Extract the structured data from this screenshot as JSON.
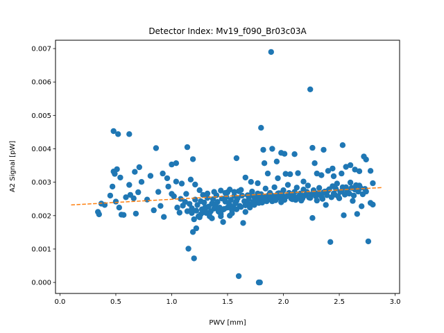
{
  "chart_data": {
    "type": "scatter",
    "title": "Detector Index: Mv19_f090_Br03c03A",
    "xlabel": "PWV [mm]",
    "ylabel": "A2 Signal [pW]",
    "xlim": [
      -0.04,
      3.04
    ],
    "ylim": [
      -0.00033,
      0.00725
    ],
    "xticks": [
      0.0,
      0.5,
      1.0,
      1.5,
      2.0,
      2.5,
      3.0
    ],
    "xtick_labels": [
      "0.0",
      "0.5",
      "1.0",
      "1.5",
      "2.0",
      "2.5",
      "3.0"
    ],
    "yticks": [
      0.0,
      0.001,
      0.002,
      0.003,
      0.004,
      0.005,
      0.006,
      0.007
    ],
    "ytick_labels": [
      "0.000",
      "0.001",
      "0.002",
      "0.003",
      "0.004",
      "0.005",
      "0.006",
      "0.007"
    ],
    "scatter_color": "#1f77b4",
    "fit_color": "#ff7f0e",
    "fit_line": {
      "x": [
        0.1,
        2.88
      ],
      "y": [
        0.00232,
        0.00284
      ]
    },
    "points": [
      [
        1.89,
        0.0069
      ],
      [
        2.24,
        0.00578
      ],
      [
        1.8,
        0.00463
      ],
      [
        0.48,
        0.00453
      ],
      [
        0.52,
        0.00444
      ],
      [
        0.62,
        0.00444
      ],
      [
        1.14,
        0.00405
      ],
      [
        0.86,
        0.00402
      ],
      [
        1.82,
        0.00397
      ],
      [
        1.9,
        0.004
      ],
      [
        1.98,
        0.00388
      ],
      [
        2.01,
        0.00385
      ],
      [
        2.1,
        0.00384
      ],
      [
        2.26,
        0.00403
      ],
      [
        2.36,
        0.00397
      ],
      [
        2.53,
        0.00411
      ],
      [
        2.72,
        0.00377
      ],
      [
        2.74,
        0.00368
      ],
      [
        1.19,
        0.00369
      ],
      [
        1.58,
        0.00372
      ],
      [
        0.71,
        0.00345
      ],
      [
        1.0,
        0.00353
      ],
      [
        1.04,
        0.00357
      ],
      [
        1.83,
        0.00357
      ],
      [
        1.94,
        0.00362
      ],
      [
        2.28,
        0.00357
      ],
      [
        2.44,
        0.00341
      ],
      [
        0.48,
        0.00332
      ],
      [
        0.51,
        0.00339
      ],
      [
        0.54,
        0.00314
      ],
      [
        0.49,
        0.00325
      ],
      [
        0.47,
        0.00287
      ],
      [
        0.62,
        0.00292
      ],
      [
        0.67,
        0.00331
      ],
      [
        0.73,
        0.00301
      ],
      [
        0.81,
        0.00319
      ],
      [
        0.92,
        0.00326
      ],
      [
        0.96,
        0.00312
      ],
      [
        1.04,
        0.00302
      ],
      [
        1.09,
        0.00296
      ],
      [
        1.17,
        0.00308
      ],
      [
        1.21,
        0.00293
      ],
      [
        1.66,
        0.00314
      ],
      [
        1.71,
        0.00301
      ],
      [
        1.77,
        0.00297
      ],
      [
        1.86,
        0.00326
      ],
      [
        1.95,
        0.00312
      ],
      [
        2.02,
        0.00325
      ],
      [
        2.06,
        0.00324
      ],
      [
        2.13,
        0.00327
      ],
      [
        2.18,
        0.00302
      ],
      [
        2.3,
        0.00326
      ],
      [
        2.34,
        0.00321
      ],
      [
        2.4,
        0.00334
      ],
      [
        2.45,
        0.00318
      ],
      [
        2.52,
        0.00326
      ],
      [
        2.56,
        0.00346
      ],
      [
        2.6,
        0.00351
      ],
      [
        2.64,
        0.00338
      ],
      [
        2.68,
        0.00333
      ],
      [
        2.78,
        0.00334
      ],
      [
        2.8,
        0.00297
      ],
      [
        0.37,
        0.00236
      ],
      [
        0.34,
        0.00211
      ],
      [
        0.35,
        0.00204
      ],
      [
        0.4,
        0.00232
      ],
      [
        0.45,
        0.0026
      ],
      [
        0.5,
        0.00242
      ],
      [
        0.53,
        0.00224
      ],
      [
        0.55,
        0.00203
      ],
      [
        0.57,
        0.00202
      ],
      [
        0.59,
        0.00255
      ],
      [
        0.63,
        0.00262
      ],
      [
        0.66,
        0.00252
      ],
      [
        0.7,
        0.0027
      ],
      [
        0.68,
        0.00206
      ],
      [
        0.78,
        0.00248
      ],
      [
        0.84,
        0.00216
      ],
      [
        0.88,
        0.00271
      ],
      [
        0.9,
        0.00229
      ],
      [
        0.93,
        0.00196
      ],
      [
        0.97,
        0.00287
      ],
      [
        1.0,
        0.00265
      ],
      [
        1.05,
        0.00224
      ],
      [
        1.07,
        0.00209
      ],
      [
        1.1,
        0.0023
      ],
      [
        1.13,
        0.00265
      ],
      [
        1.15,
        0.00101
      ],
      [
        1.2,
        0.00072
      ],
      [
        1.19,
        0.00151
      ],
      [
        1.22,
        0.00162
      ],
      [
        1.24,
        0.00198
      ],
      [
        1.25,
        0.00276
      ],
      [
        1.28,
        0.0021
      ],
      [
        1.3,
        0.00225
      ],
      [
        1.32,
        0.00253
      ],
      [
        1.34,
        0.00198
      ],
      [
        1.36,
        0.00236
      ],
      [
        1.38,
        0.00271
      ],
      [
        1.4,
        0.00226
      ],
      [
        1.42,
        0.00215
      ],
      [
        1.44,
        0.00205
      ],
      [
        1.46,
        0.00181
      ],
      [
        1.48,
        0.00242
      ],
      [
        1.5,
        0.0027
      ],
      [
        1.52,
        0.00232
      ],
      [
        1.54,
        0.00217
      ],
      [
        1.56,
        0.00259
      ],
      [
        1.58,
        0.00244
      ],
      [
        1.6,
        0.00019
      ],
      [
        1.62,
        0.00277
      ],
      [
        1.64,
        0.00178
      ],
      [
        1.66,
        0.00211
      ],
      [
        1.68,
        0.00261
      ],
      [
        1.7,
        0.00233
      ],
      [
        1.72,
        0.00272
      ],
      [
        1.74,
        0.00255
      ],
      [
        1.76,
        0.00246
      ],
      [
        1.78,
        0.0
      ],
      [
        1.78,
        0.0
      ],
      [
        1.79,
        0.0
      ],
      [
        1.8,
        0.00264
      ],
      [
        1.82,
        0.00247
      ],
      [
        1.84,
        0.00281
      ],
      [
        1.86,
        0.00258
      ],
      [
        1.88,
        0.00268
      ],
      [
        1.9,
        0.00243
      ],
      [
        1.92,
        0.00285
      ],
      [
        1.94,
        0.00254
      ],
      [
        1.96,
        0.00267
      ],
      [
        1.98,
        0.0024
      ],
      [
        2.0,
        0.00276
      ],
      [
        2.02,
        0.00256
      ],
      [
        2.04,
        0.00292
      ],
      [
        2.06,
        0.00262
      ],
      [
        2.08,
        0.00249
      ],
      [
        2.1,
        0.00271
      ],
      [
        2.12,
        0.00284
      ],
      [
        2.14,
        0.00259
      ],
      [
        2.16,
        0.00245
      ],
      [
        2.18,
        0.00278
      ],
      [
        2.2,
        0.00262
      ],
      [
        2.22,
        0.0029
      ],
      [
        2.24,
        0.00253
      ],
      [
        2.26,
        0.00193
      ],
      [
        2.28,
        0.00268
      ],
      [
        2.3,
        0.00245
      ],
      [
        2.32,
        0.00283
      ],
      [
        2.34,
        0.00257
      ],
      [
        2.36,
        0.0027
      ],
      [
        2.38,
        0.00232
      ],
      [
        2.4,
        0.00275
      ],
      [
        2.42,
        0.00121
      ],
      [
        2.44,
        0.00288
      ],
      [
        2.46,
        0.00263
      ],
      [
        2.48,
        0.00296
      ],
      [
        2.5,
        0.00252
      ],
      [
        2.52,
        0.00273
      ],
      [
        2.54,
        0.00201
      ],
      [
        2.56,
        0.00285
      ],
      [
        2.58,
        0.00267
      ],
      [
        2.6,
        0.00299
      ],
      [
        2.62,
        0.00244
      ],
      [
        2.64,
        0.00278
      ],
      [
        2.66,
        0.00205
      ],
      [
        2.68,
        0.0029
      ],
      [
        2.7,
        0.00228
      ],
      [
        2.74,
        0.00272
      ],
      [
        2.76,
        0.00123
      ],
      [
        2.78,
        0.00238
      ],
      [
        2.8,
        0.00233
      ],
      [
        1.02,
        0.00258
      ],
      [
        1.08,
        0.0025
      ],
      [
        1.12,
        0.00241
      ],
      [
        1.16,
        0.00235
      ],
      [
        1.18,
        0.00222
      ],
      [
        1.21,
        0.00248
      ],
      [
        1.23,
        0.00232
      ],
      [
        1.26,
        0.00243
      ],
      [
        1.27,
        0.00219
      ],
      [
        1.29,
        0.00239
      ],
      [
        1.31,
        0.00208
      ],
      [
        1.33,
        0.00227
      ],
      [
        1.35,
        0.00213
      ],
      [
        1.37,
        0.00249
      ],
      [
        1.39,
        0.00233
      ],
      [
        1.41,
        0.00241
      ],
      [
        1.43,
        0.00224
      ],
      [
        1.45,
        0.00251
      ],
      [
        1.47,
        0.0022
      ],
      [
        1.49,
        0.00256
      ],
      [
        1.51,
        0.00238
      ],
      [
        1.53,
        0.00247
      ],
      [
        1.55,
        0.00226
      ],
      [
        1.57,
        0.00237
      ],
      [
        1.59,
        0.00252
      ],
      [
        1.61,
        0.00229
      ],
      [
        1.63,
        0.0026
      ],
      [
        1.65,
        0.00243
      ],
      [
        1.67,
        0.00236
      ],
      [
        1.69,
        0.00249
      ],
      [
        1.71,
        0.00262
      ],
      [
        1.73,
        0.00241
      ],
      [
        1.75,
        0.00258
      ],
      [
        1.77,
        0.00266
      ],
      [
        1.79,
        0.00252
      ],
      [
        1.81,
        0.00239
      ],
      [
        1.83,
        0.00255
      ],
      [
        1.85,
        0.00243
      ],
      [
        1.87,
        0.00262
      ],
      [
        1.89,
        0.00251
      ],
      [
        1.91,
        0.00259
      ],
      [
        1.93,
        0.00246
      ],
      [
        1.95,
        0.00266
      ],
      [
        1.97,
        0.00252
      ],
      [
        1.99,
        0.00261
      ],
      [
        2.01,
        0.00247
      ],
      [
        2.03,
        0.00258
      ],
      [
        2.05,
        0.00268
      ],
      [
        2.07,
        0.00251
      ],
      [
        2.09,
        0.0026
      ],
      [
        2.11,
        0.00247
      ],
      [
        2.13,
        0.00255
      ],
      [
        2.15,
        0.00266
      ],
      [
        2.17,
        0.00251
      ],
      [
        2.19,
        0.0026
      ],
      [
        2.21,
        0.00271
      ],
      [
        2.23,
        0.00254
      ],
      [
        2.25,
        0.00263
      ],
      [
        2.27,
        0.00276
      ],
      [
        2.29,
        0.00258
      ],
      [
        2.31,
        0.00267
      ],
      [
        2.33,
        0.00262
      ],
      [
        2.35,
        0.0025
      ],
      [
        2.37,
        0.00272
      ],
      [
        2.39,
        0.00261
      ],
      [
        2.41,
        0.00279
      ],
      [
        2.43,
        0.00255
      ],
      [
        2.45,
        0.00266
      ],
      [
        2.47,
        0.0028
      ],
      [
        2.49,
        0.00258
      ],
      [
        2.51,
        0.00271
      ],
      [
        2.53,
        0.00285
      ],
      [
        2.55,
        0.00263
      ],
      [
        2.57,
        0.00276
      ],
      [
        2.59,
        0.00266
      ],
      [
        2.61,
        0.00283
      ],
      [
        2.63,
        0.0026
      ],
      [
        2.65,
        0.00291
      ],
      [
        2.67,
        0.00272
      ],
      [
        2.69,
        0.00283
      ],
      [
        2.71,
        0.00264
      ],
      [
        2.73,
        0.0028
      ],
      [
        1.14,
        0.00213
      ],
      [
        1.18,
        0.00208
      ],
      [
        1.22,
        0.00215
      ],
      [
        1.26,
        0.00204
      ],
      [
        1.3,
        0.00219
      ],
      [
        1.34,
        0.00209
      ],
      [
        1.38,
        0.00221
      ],
      [
        1.42,
        0.00212
      ],
      [
        1.46,
        0.00218
      ],
      [
        1.5,
        0.00224
      ],
      [
        1.54,
        0.00207
      ],
      [
        1.58,
        0.00219
      ],
      [
        1.62,
        0.00226
      ],
      [
        1.66,
        0.00231
      ],
      [
        1.7,
        0.00224
      ],
      [
        1.74,
        0.00232
      ],
      [
        1.78,
        0.00238
      ],
      [
        1.2,
        0.00189
      ],
      [
        1.25,
        0.00195
      ],
      [
        1.36,
        0.00192
      ],
      [
        1.44,
        0.00198
      ],
      [
        1.52,
        0.002
      ],
      [
        1.28,
        0.00262
      ],
      [
        1.32,
        0.00266
      ],
      [
        1.4,
        0.00261
      ],
      [
        1.48,
        0.00268
      ],
      [
        1.56,
        0.00271
      ],
      [
        1.44,
        0.00275
      ],
      [
        1.52,
        0.00278
      ],
      [
        1.6,
        0.00273
      ]
    ]
  }
}
